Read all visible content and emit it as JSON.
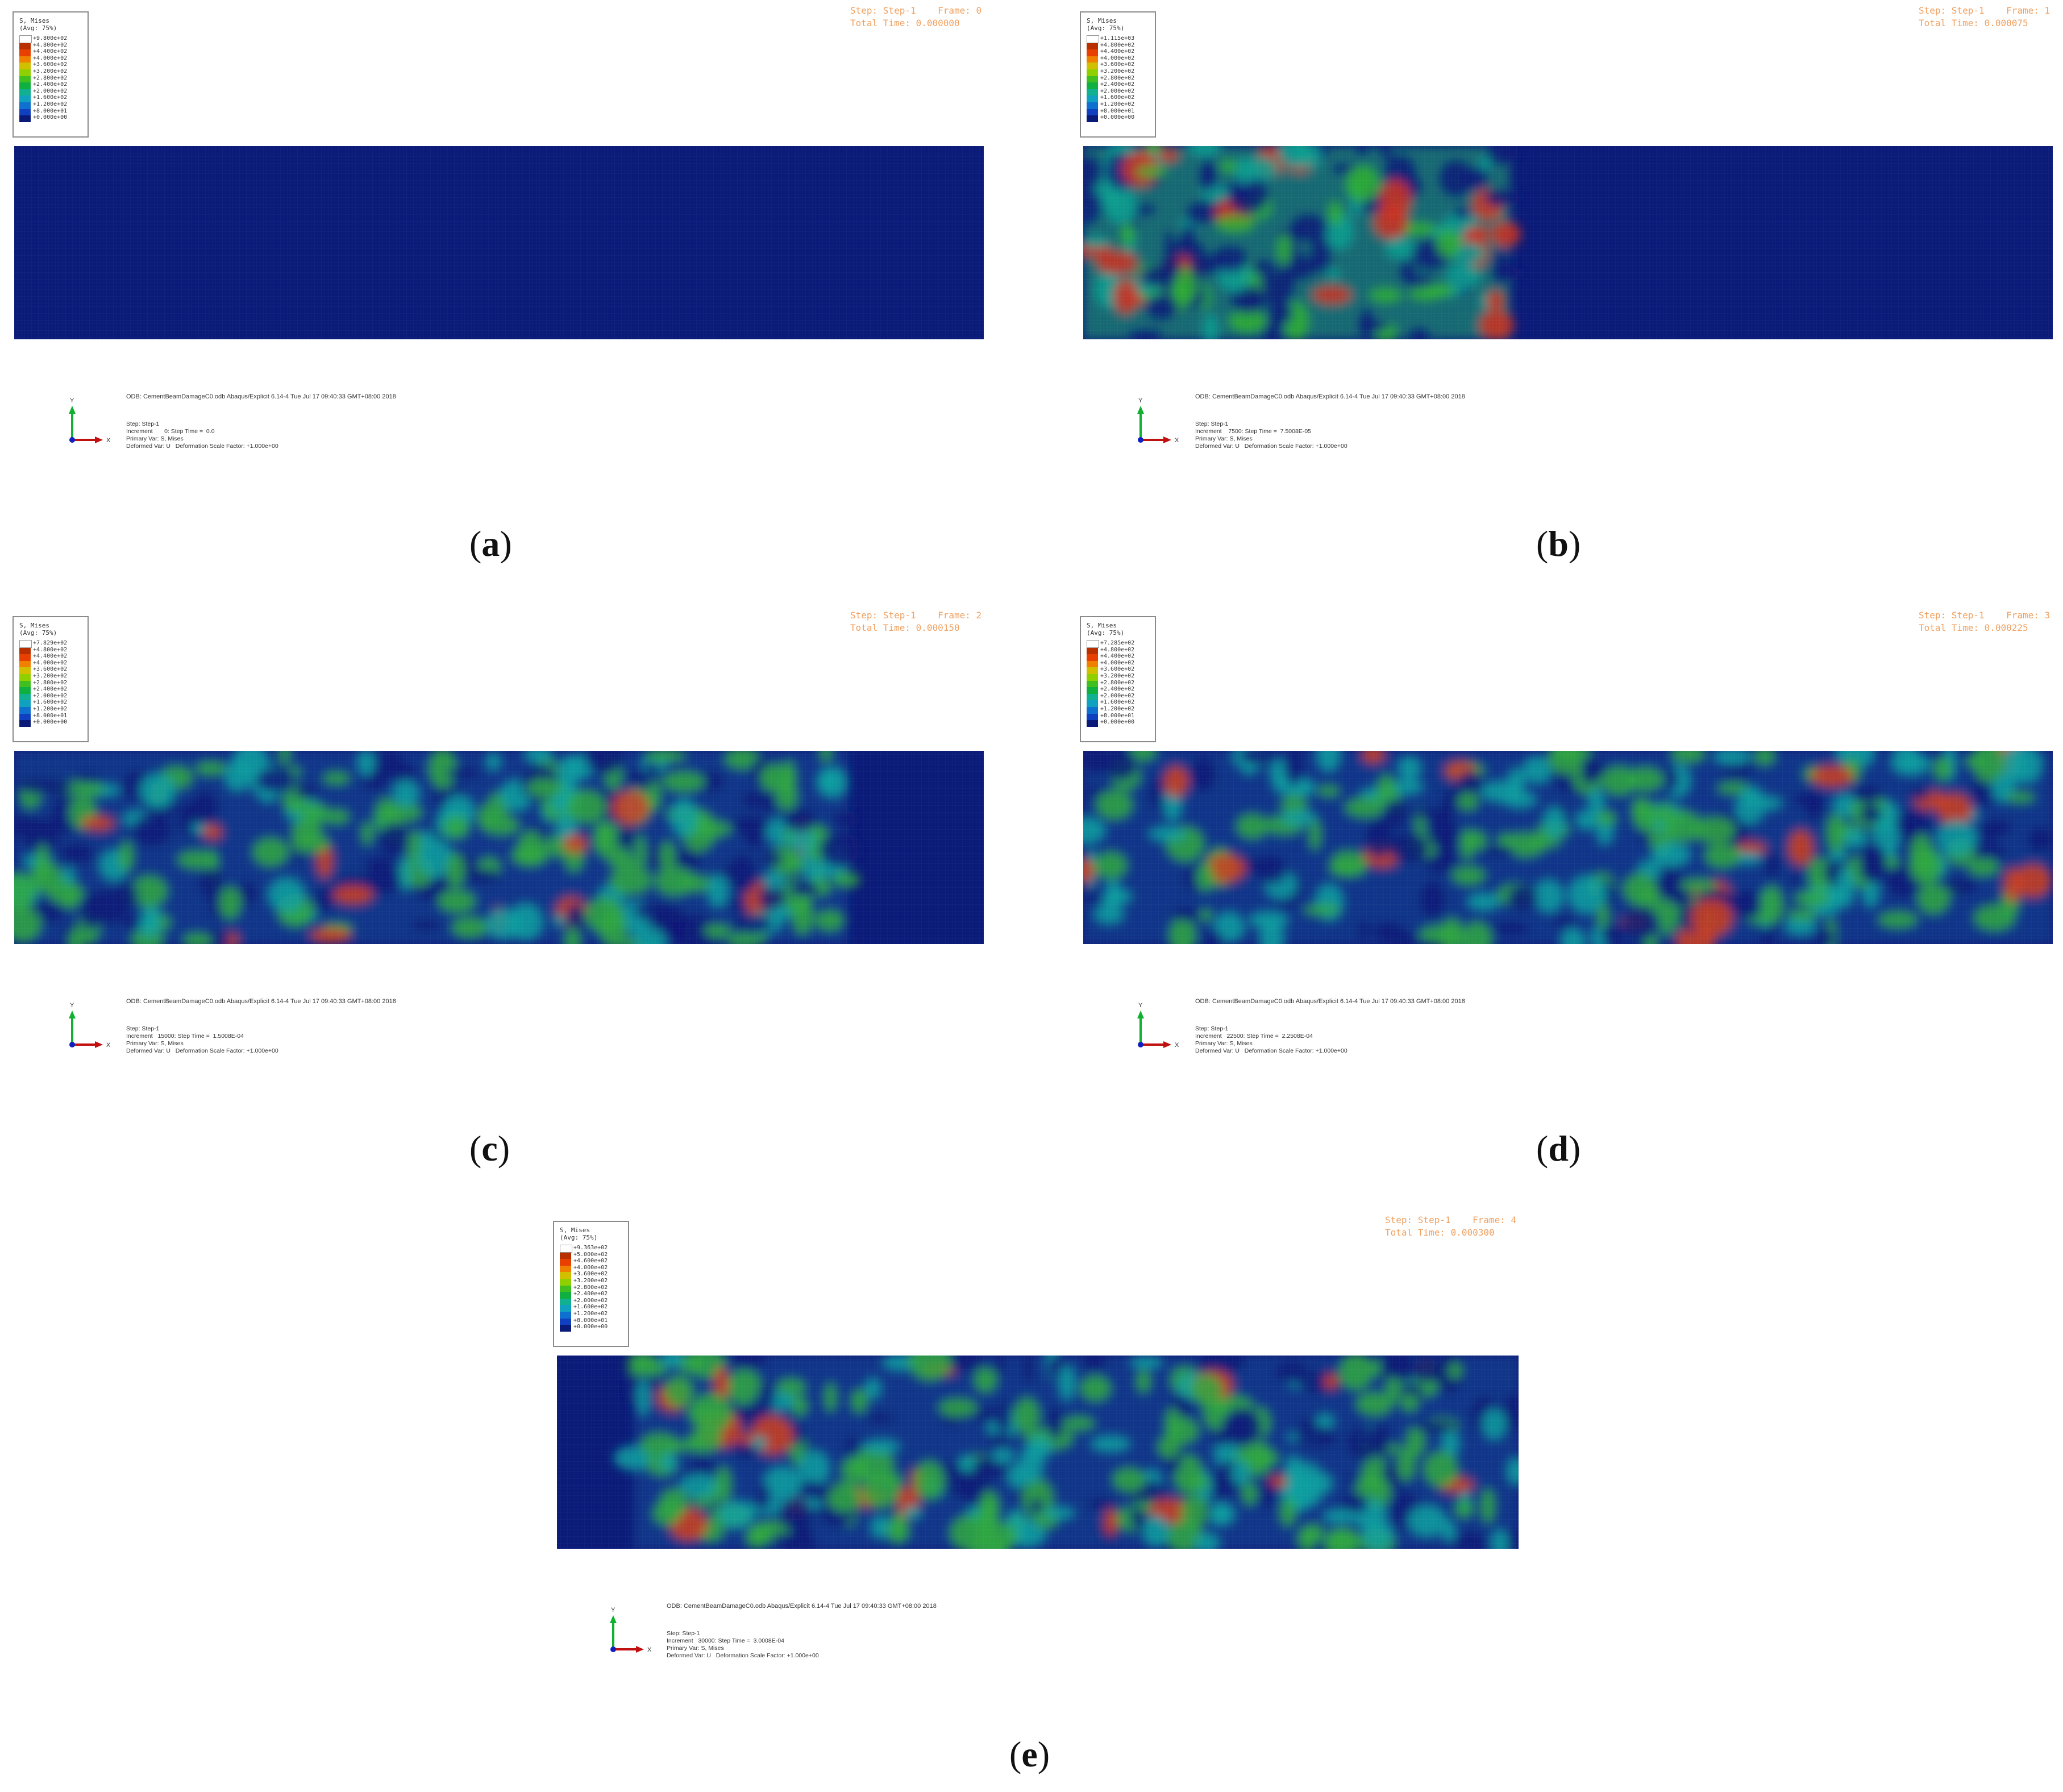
{
  "legend": {
    "title_line1": "S, Mises",
    "title_line2": "(Avg: 75%)",
    "colors": [
      "#ffffff",
      "#b83000",
      "#e84000",
      "#f08000",
      "#d0c000",
      "#90d000",
      "#40c020",
      "#10b040",
      "#10b090",
      "#10a0c0",
      "#1070d0",
      "#1040c0",
      "#0a1a78"
    ]
  },
  "panels": [
    {
      "id": "a",
      "caption": "a",
      "step_line1": "Step: Step-1    Frame: 0",
      "step_line2": "Total Time: 0.000000",
      "legend_values": [
        "+9.800e+02",
        "+4.800e+02",
        "+4.400e+02",
        "+4.000e+02",
        "+3.600e+02",
        "+3.200e+02",
        "+2.800e+02",
        "+2.400e+02",
        "+2.000e+02",
        "+1.600e+02",
        "+1.200e+02",
        "+8.000e+01",
        "+0.000e+00"
      ],
      "odb_line": "ODB: CementBeamDamageC0.odb    Abaqus/Explicit 6.14-4    Tue Jul 17 09:40:33 GMT+08:00 2018",
      "step_text": "Step: Step-1",
      "increment_text": "Increment       0: Step Time =  0.0",
      "primary_var": "Primary Var: S, Mises",
      "deformed_var": "Deformed Var: U   Deformation Scale Factor: +1.000e+00",
      "axis_y": "Y",
      "axis_x": "X"
    },
    {
      "id": "b",
      "caption": "b",
      "step_line1": "Step: Step-1    Frame: 1",
      "step_line2": "Total Time: 0.000075",
      "legend_values": [
        "+1.115e+03",
        "+4.800e+02",
        "+4.400e+02",
        "+4.000e+02",
        "+3.600e+02",
        "+3.200e+02",
        "+2.800e+02",
        "+2.400e+02",
        "+2.000e+02",
        "+1.600e+02",
        "+1.200e+02",
        "+8.000e+01",
        "+0.000e+00"
      ],
      "odb_line": "ODB: CementBeamDamageC0.odb    Abaqus/Explicit 6.14-4    Tue Jul 17 09:40:33 GMT+08:00 2018",
      "step_text": "Step: Step-1",
      "increment_text": "Increment    7500: Step Time =  7.5008E-05",
      "primary_var": "Primary Var: S, Mises",
      "deformed_var": "Deformed Var: U   Deformation Scale Factor: +1.000e+00",
      "axis_y": "Y",
      "axis_x": "X"
    },
    {
      "id": "c",
      "caption": "c",
      "step_line1": "Step: Step-1    Frame: 2",
      "step_line2": "Total Time: 0.000150",
      "legend_values": [
        "+7.829e+02",
        "+4.800e+02",
        "+4.400e+02",
        "+4.000e+02",
        "+3.600e+02",
        "+3.200e+02",
        "+2.800e+02",
        "+2.400e+02",
        "+2.000e+02",
        "+1.600e+02",
        "+1.200e+02",
        "+8.000e+01",
        "+0.000e+00"
      ],
      "odb_line": "ODB: CementBeamDamageC0.odb    Abaqus/Explicit 6.14-4    Tue Jul 17 09:40:33 GMT+08:00 2018",
      "step_text": "Step: Step-1",
      "increment_text": "Increment   15000: Step Time =  1.5008E-04",
      "primary_var": "Primary Var: S, Mises",
      "deformed_var": "Deformed Var: U   Deformation Scale Factor: +1.000e+00",
      "axis_y": "Y",
      "axis_x": "X"
    },
    {
      "id": "d",
      "caption": "d",
      "step_line1": "Step: Step-1    Frame: 3",
      "step_line2": "Total Time: 0.000225",
      "legend_values": [
        "+7.285e+02",
        "+4.800e+02",
        "+4.400e+02",
        "+4.000e+02",
        "+3.600e+02",
        "+3.200e+02",
        "+2.800e+02",
        "+2.400e+02",
        "+2.000e+02",
        "+1.600e+02",
        "+1.200e+02",
        "+8.000e+01",
        "+0.000e+00"
      ],
      "odb_line": "ODB: CementBeamDamageC0.odb    Abaqus/Explicit 6.14-4    Tue Jul 17 09:40:33 GMT+08:00 2018",
      "step_text": "Step: Step-1",
      "increment_text": "Increment   22500: Step Time =  2.2508E-04",
      "primary_var": "Primary Var: S, Mises",
      "deformed_var": "Deformed Var: U   Deformation Scale Factor: +1.000e+00",
      "axis_y": "Y",
      "axis_x": "X"
    },
    {
      "id": "e",
      "caption": "e",
      "step_line1": "Step: Step-1    Frame: 4",
      "step_line2": "Total Time: 0.000300",
      "legend_values": [
        "+9.363e+02",
        "+5.000e+02",
        "+4.600e+02",
        "+4.000e+02",
        "+3.600e+02",
        "+3.200e+02",
        "+2.800e+02",
        "+2.400e+02",
        "+2.000e+02",
        "+1.600e+02",
        "+1.200e+02",
        "+8.000e+01",
        "+0.000e+00"
      ],
      "odb_line": "ODB: CementBeamDamageC0.odb    Abaqus/Explicit 6.14-4    Tue Jul 17 09:40:33 GMT+08:00 2018",
      "step_text": "Step: Step-1",
      "increment_text": "Increment   30000: Step Time =  3.0008E-04",
      "primary_var": "Primary Var: S, Mises",
      "deformed_var": "Deformed Var: U   Deformation Scale Factor: +1.000e+00",
      "axis_y": "Y",
      "axis_x": "X"
    }
  ]
}
